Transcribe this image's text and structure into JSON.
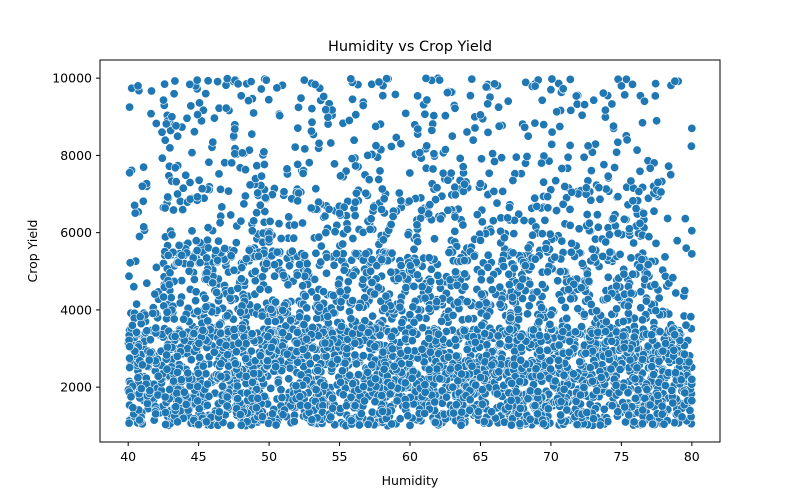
{
  "chart_data": {
    "type": "scatter",
    "title": "Humidity vs Crop Yield",
    "xlabel": "Humidity",
    "ylabel": "Crop Yield",
    "xlim": [
      38.0,
      82.0
    ],
    "ylim": [
      580,
      10470
    ],
    "xticks": [
      40,
      45,
      50,
      55,
      60,
      65,
      70,
      75,
      80
    ],
    "yticks": [
      2000,
      4000,
      6000,
      8000,
      10000
    ],
    "marker_color": "#1f77b4",
    "marker_edge_color": "#ffffff",
    "grid": false,
    "legend": "none",
    "x_range": [
      40,
      80
    ],
    "y_range": [
      1000,
      10000
    ],
    "density_bands": [
      {
        "y_min": 1000,
        "y_max": 3500,
        "relative_density": "very high"
      },
      {
        "y_min": 3500,
        "y_max": 5500,
        "relative_density": "high"
      },
      {
        "y_min": 5500,
        "y_max": 7000,
        "relative_density": "medium"
      },
      {
        "y_min": 7000,
        "y_max": 10000,
        "relative_density": "low"
      }
    ],
    "sample_points": [
      {
        "x": 40.1,
        "y": 9250
      },
      {
        "x": 40.7,
        "y": 9800
      },
      {
        "x": 40.1,
        "y": 7550
      },
      {
        "x": 41.0,
        "y": 7200
      },
      {
        "x": 40.8,
        "y": 5900
      },
      {
        "x": 41.1,
        "y": 6150
      },
      {
        "x": 40.4,
        "y": 4600
      },
      {
        "x": 40.6,
        "y": 4150
      },
      {
        "x": 40.3,
        "y": 3600
      },
      {
        "x": 40.1,
        "y": 3050
      },
      {
        "x": 40.1,
        "y": 2750
      },
      {
        "x": 40.2,
        "y": 1750
      },
      {
        "x": 40.8,
        "y": 1150
      },
      {
        "x": 41.5,
        "y": 2700
      },
      {
        "x": 42.0,
        "y": 5100
      },
      {
        "x": 42.4,
        "y": 8600
      },
      {
        "x": 43.1,
        "y": 9000
      },
      {
        "x": 43.5,
        "y": 7000
      },
      {
        "x": 44.9,
        "y": 9950
      },
      {
        "x": 45.5,
        "y": 9600
      },
      {
        "x": 47.8,
        "y": 9850
      },
      {
        "x": 49.8,
        "y": 9950
      },
      {
        "x": 52.5,
        "y": 9950
      },
      {
        "x": 55.8,
        "y": 9980
      },
      {
        "x": 57.8,
        "y": 9900
      },
      {
        "x": 62.1,
        "y": 9950
      },
      {
        "x": 66.0,
        "y": 9850
      },
      {
        "x": 70.0,
        "y": 9700
      },
      {
        "x": 75.0,
        "y": 9800
      },
      {
        "x": 78.8,
        "y": 9920
      },
      {
        "x": 80.0,
        "y": 8700
      },
      {
        "x": 78.5,
        "y": 7500
      },
      {
        "x": 77.6,
        "y": 7300
      },
      {
        "x": 80.0,
        "y": 6050
      },
      {
        "x": 79.6,
        "y": 5600
      },
      {
        "x": 80.0,
        "y": 5450
      },
      {
        "x": 79.5,
        "y": 4500
      },
      {
        "x": 79.8,
        "y": 2650
      },
      {
        "x": 80.0,
        "y": 2200
      },
      {
        "x": 80.0,
        "y": 1650
      },
      {
        "x": 79.5,
        "y": 1850
      },
      {
        "x": 77.9,
        "y": 1300
      },
      {
        "x": 76.5,
        "y": 1050
      },
      {
        "x": 73.5,
        "y": 1020
      },
      {
        "x": 60.0,
        "y": 1010
      },
      {
        "x": 50.5,
        "y": 1020
      },
      {
        "x": 45.0,
        "y": 1030
      },
      {
        "x": 43.5,
        "y": 1100
      },
      {
        "x": 55.0,
        "y": 6500
      },
      {
        "x": 60.5,
        "y": 6200
      },
      {
        "x": 65.0,
        "y": 5800
      },
      {
        "x": 57.0,
        "y": 8000
      },
      {
        "x": 63.0,
        "y": 8500
      },
      {
        "x": 48.0,
        "y": 6300
      },
      {
        "x": 72.0,
        "y": 6100
      },
      {
        "x": 74.0,
        "y": 4300
      },
      {
        "x": 68.0,
        "y": 4800
      },
      {
        "x": 52.0,
        "y": 4900
      },
      {
        "x": 46.0,
        "y": 4700
      },
      {
        "x": 58.0,
        "y": 5300
      }
    ]
  }
}
